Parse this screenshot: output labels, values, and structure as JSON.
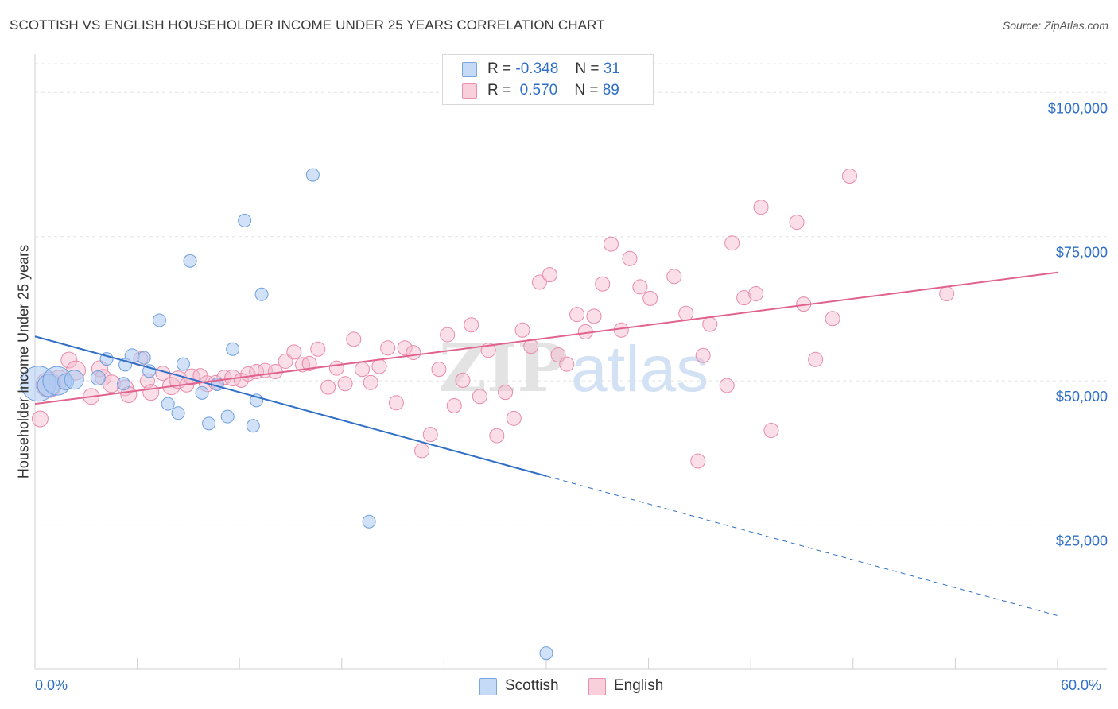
{
  "header": {
    "title": "SCOTTISH VS ENGLISH HOUSEHOLDER INCOME UNDER 25 YEARS CORRELATION CHART",
    "source": "Source: ZipAtlas.com"
  },
  "watermark": {
    "zip": "ZIP",
    "atlas": "atlas"
  },
  "legend": {
    "r_label": "R =",
    "n_label": "N =",
    "rows": [
      {
        "name": "Scottish",
        "r": "-0.348",
        "n": "31",
        "color": "#a9c8f2"
      },
      {
        "name": "English",
        "r": "0.570",
        "n": "89",
        "color": "#f5b8cb"
      }
    ]
  },
  "x_labels": {
    "min": "0.0%",
    "max": "60.0%"
  },
  "colors": {
    "scottish_line": "#2f6fc6",
    "english_line": "#e0628e",
    "tick_text": "#2f6fc6"
  },
  "chart_data": {
    "type": "scatter",
    "title": "SCOTTISH VS ENGLISH HOUSEHOLDER INCOME UNDER 25 YEARS CORRELATION CHART",
    "xlabel": "",
    "ylabel": "Householder Income Under 25 years",
    "xlim": [
      0,
      60
    ],
    "ylim": [
      0,
      105000
    ],
    "y_ticks": [
      {
        "value": 25000,
        "label": "$25,000"
      },
      {
        "value": 50000,
        "label": "$50,000"
      },
      {
        "value": 75000,
        "label": "$75,000"
      },
      {
        "value": 100000,
        "label": "$100,000"
      }
    ],
    "x_ticks": [
      0,
      6,
      12,
      18,
      24,
      30,
      36,
      42,
      48,
      54,
      60
    ],
    "series": [
      {
        "name": "Scottish",
        "trend": {
          "x0": 0,
          "y0": 57700,
          "x1": 30,
          "y1": 33500,
          "dash_to_x": 60,
          "dash_to_y": 9300
        },
        "points": [
          [
            0.2,
            49500,
            22
          ],
          [
            0.8,
            49200,
            14
          ],
          [
            1.3,
            50000,
            18
          ],
          [
            1.8,
            49800,
            10
          ],
          [
            2.3,
            50200,
            12
          ],
          [
            3.7,
            50500,
            9
          ],
          [
            4.2,
            53800,
            8
          ],
          [
            5.2,
            49500,
            8
          ],
          [
            5.3,
            52800,
            8
          ],
          [
            5.7,
            54300,
            9
          ],
          [
            6.4,
            54000,
            8
          ],
          [
            6.7,
            51700,
            8
          ],
          [
            7.3,
            60500,
            8
          ],
          [
            7.8,
            46000,
            8
          ],
          [
            8.4,
            44400,
            8
          ],
          [
            8.7,
            52900,
            8
          ],
          [
            9.1,
            70800,
            8
          ],
          [
            9.8,
            47900,
            8
          ],
          [
            10.2,
            42600,
            8
          ],
          [
            10.7,
            49400,
            8
          ],
          [
            11.3,
            43800,
            8
          ],
          [
            11.6,
            55500,
            8
          ],
          [
            12.3,
            77800,
            8
          ],
          [
            12.8,
            42200,
            8
          ],
          [
            13.0,
            46600,
            8
          ],
          [
            13.3,
            65000,
            8
          ],
          [
            16.3,
            85700,
            8
          ],
          [
            19.6,
            25600,
            8
          ],
          [
            30.0,
            2800,
            8
          ]
        ]
      },
      {
        "name": "English",
        "trend": {
          "x0": 0,
          "y0": 46000,
          "x1": 60,
          "y1": 68800
        },
        "points": [
          [
            0.3,
            43400,
            10
          ],
          [
            0.8,
            49300,
            16
          ],
          [
            1.4,
            50200,
            12
          ],
          [
            2.0,
            53600,
            10
          ],
          [
            2.4,
            51800,
            12
          ],
          [
            3.3,
            47300,
            10
          ],
          [
            3.8,
            52100,
            10
          ],
          [
            4.0,
            50600,
            10
          ],
          [
            4.5,
            49500,
            11
          ],
          [
            5.3,
            48800,
            10
          ],
          [
            5.5,
            47600,
            10
          ],
          [
            6.2,
            53800,
            9
          ],
          [
            6.6,
            50000,
            9
          ],
          [
            6.8,
            48000,
            10
          ],
          [
            7.5,
            51300,
            9
          ],
          [
            8.0,
            49100,
            11
          ],
          [
            8.4,
            50200,
            11
          ],
          [
            8.9,
            49300,
            9
          ],
          [
            9.2,
            50700,
            10
          ],
          [
            9.7,
            50900,
            9
          ],
          [
            10.1,
            49500,
            10
          ],
          [
            10.6,
            49700,
            9
          ],
          [
            11.1,
            50600,
            9
          ],
          [
            11.6,
            50500,
            10
          ],
          [
            12.1,
            50100,
            9
          ],
          [
            12.5,
            51200,
            9
          ],
          [
            13.0,
            51600,
            9
          ],
          [
            13.5,
            51800,
            9
          ],
          [
            14.1,
            51600,
            9
          ],
          [
            14.7,
            53400,
            9
          ],
          [
            15.2,
            55000,
            9
          ],
          [
            15.7,
            52800,
            9
          ],
          [
            16.1,
            53000,
            9
          ],
          [
            16.6,
            55500,
            9
          ],
          [
            17.2,
            48900,
            9
          ],
          [
            17.7,
            52200,
            9
          ],
          [
            18.2,
            49500,
            9
          ],
          [
            18.7,
            57200,
            9
          ],
          [
            19.2,
            52000,
            9
          ],
          [
            19.7,
            49700,
            9
          ],
          [
            20.2,
            52500,
            9
          ],
          [
            20.7,
            55700,
            9
          ],
          [
            21.2,
            46200,
            9
          ],
          [
            21.7,
            55700,
            9
          ],
          [
            22.2,
            54900,
            9
          ],
          [
            22.7,
            37900,
            9
          ],
          [
            23.2,
            40700,
            9
          ],
          [
            23.7,
            52000,
            9
          ],
          [
            24.2,
            58000,
            9
          ],
          [
            24.6,
            45700,
            9
          ],
          [
            25.1,
            50100,
            9
          ],
          [
            25.6,
            59700,
            9
          ],
          [
            26.1,
            47300,
            9
          ],
          [
            26.6,
            55300,
            9
          ],
          [
            27.1,
            40500,
            9
          ],
          [
            27.6,
            48000,
            9
          ],
          [
            28.1,
            43500,
            9
          ],
          [
            28.6,
            58800,
            9
          ],
          [
            29.1,
            56000,
            9
          ],
          [
            29.6,
            67100,
            9
          ],
          [
            30.2,
            68400,
            9
          ],
          [
            30.7,
            54500,
            9
          ],
          [
            31.2,
            52900,
            9
          ],
          [
            31.8,
            61500,
            9
          ],
          [
            32.3,
            58500,
            9
          ],
          [
            32.8,
            61200,
            9
          ],
          [
            33.3,
            66800,
            9
          ],
          [
            33.8,
            73700,
            9
          ],
          [
            34.4,
            58800,
            9
          ],
          [
            34.9,
            71200,
            9
          ],
          [
            35.5,
            66300,
            9
          ],
          [
            36.1,
            64300,
            9
          ],
          [
            37.5,
            68100,
            9
          ],
          [
            38.2,
            61700,
            9
          ],
          [
            38.9,
            36100,
            9
          ],
          [
            39.2,
            54400,
            9
          ],
          [
            39.6,
            59800,
            9
          ],
          [
            40.6,
            49200,
            9
          ],
          [
            40.9,
            73900,
            9
          ],
          [
            41.6,
            64400,
            9
          ],
          [
            42.3,
            65100,
            9
          ],
          [
            42.6,
            80100,
            9
          ],
          [
            43.2,
            41400,
            9
          ],
          [
            44.7,
            77500,
            9
          ],
          [
            45.1,
            63300,
            9
          ],
          [
            45.8,
            53700,
            9
          ],
          [
            46.8,
            60800,
            9
          ],
          [
            47.8,
            85500,
            9
          ],
          [
            53.5,
            65100,
            9
          ]
        ]
      }
    ],
    "legend_position": "top-center",
    "grid": true
  }
}
